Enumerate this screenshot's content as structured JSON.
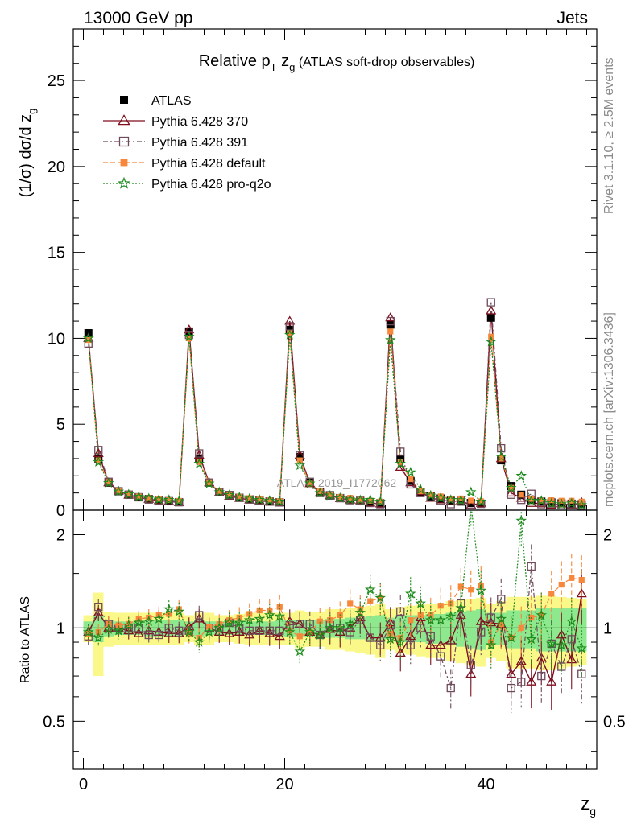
{
  "header": {
    "left": "13000 GeV pp",
    "right": "Jets"
  },
  "side_text": {
    "events": "Rivet 3.1.10, ≥ 2.5M events",
    "url": "mcplots.cern.ch [arXiv:1306.3436]"
  },
  "watermark": "ATLAS_2019_I1772062",
  "chart_data": [
    {
      "type": "scatter",
      "title": "Relative p_T z_g (ATLAS soft-drop observables)",
      "title_parts": {
        "main": "Relative p",
        "sub1": "T",
        "mid": " z",
        "sub2": "g",
        "tail": " (ATLAS soft-drop observables)"
      },
      "ylabel": "(1/σ) dσ/d z_g",
      "ylabel_parts": {
        "main": "(1/σ) dσ/d z",
        "sub": "g"
      },
      "xlabel": "z_g",
      "xlabel_parts": {
        "main": "z",
        "sub": "g"
      },
      "xlim": [
        -1,
        51
      ],
      "ylim": [
        0,
        28
      ],
      "x_ticks": [
        0,
        20,
        40
      ],
      "y_ticks": [
        0,
        5,
        10,
        15,
        20,
        25
      ],
      "legend_placement": "top-left",
      "x": [
        0.5,
        1.5,
        2.5,
        3.5,
        4.5,
        5.5,
        6.5,
        7.5,
        8.5,
        9.5,
        10.5,
        11.5,
        12.5,
        13.5,
        14.5,
        15.5,
        16.5,
        17.5,
        18.5,
        19.5,
        20.5,
        21.5,
        22.5,
        23.5,
        24.5,
        25.5,
        26.5,
        27.5,
        28.5,
        29.5,
        30.5,
        31.5,
        32.5,
        33.5,
        34.5,
        35.5,
        36.5,
        37.5,
        38.5,
        39.5,
        40.5,
        41.5,
        42.5,
        43.5,
        44.5,
        45.5,
        46.5,
        47.5,
        48.5,
        49.5
      ],
      "series": [
        {
          "name": "ATLAS",
          "color": "#000000",
          "marker": "filled-square",
          "values": [
            10.3,
            3.0,
            1.6,
            1.1,
            0.9,
            0.75,
            0.65,
            0.58,
            0.52,
            0.47,
            10.4,
            3.0,
            1.6,
            1.05,
            0.85,
            0.72,
            0.63,
            0.56,
            0.5,
            0.46,
            10.5,
            3.1,
            1.6,
            1.05,
            0.85,
            0.7,
            0.6,
            0.52,
            0.45,
            0.4,
            10.8,
            3.0,
            1.7,
            1.0,
            0.8,
            0.68,
            0.55,
            0.5,
            0.42,
            0.38,
            11.2,
            2.9,
            1.4,
            0.9,
            0.6,
            0.5,
            0.45,
            0.4,
            0.38,
            0.35
          ]
        },
        {
          "name": "Pythia 6.428 370",
          "color": "#7f0f1f",
          "marker": "open-triangle",
          "values": [
            10.0,
            3.3,
            1.6,
            1.1,
            0.88,
            0.72,
            0.64,
            0.56,
            0.5,
            0.45,
            10.5,
            3.2,
            1.6,
            1.02,
            0.82,
            0.7,
            0.6,
            0.55,
            0.48,
            0.43,
            11.0,
            3.2,
            1.55,
            1.0,
            0.84,
            0.68,
            0.6,
            0.56,
            0.42,
            0.37,
            11.2,
            2.5,
            1.6,
            1.08,
            0.7,
            0.6,
            0.5,
            0.55,
            0.3,
            0.4,
            11.6,
            3.0,
            1.0,
            0.7,
            0.4,
            0.4,
            0.3,
            0.38,
            0.3,
            0.45
          ]
        },
        {
          "name": "Pythia 6.428 391",
          "color": "#6e4a5a",
          "marker": "open-square",
          "values": [
            9.7,
            3.5,
            1.65,
            1.1,
            0.9,
            0.75,
            0.62,
            0.55,
            0.52,
            0.46,
            10.2,
            3.3,
            1.6,
            1.05,
            0.88,
            0.72,
            0.62,
            0.55,
            0.5,
            0.45,
            10.7,
            3.2,
            1.65,
            1.0,
            0.87,
            0.7,
            0.58,
            0.55,
            0.42,
            0.35,
            11.0,
            3.4,
            1.5,
            1.0,
            0.75,
            0.55,
            0.35,
            0.6,
            0.32,
            0.37,
            12.1,
            3.6,
            0.9,
            0.6,
            0.95,
            0.35,
            0.4,
            0.3,
            0.35,
            0.25
          ]
        },
        {
          "name": "Pythia 6.428 default",
          "color": "#f7873a",
          "marker": "filled-square",
          "values": [
            9.9,
            2.9,
            1.65,
            1.12,
            0.93,
            0.8,
            0.7,
            0.64,
            0.58,
            0.54,
            10.0,
            2.8,
            1.62,
            1.08,
            0.9,
            0.78,
            0.7,
            0.64,
            0.57,
            0.53,
            10.3,
            2.9,
            1.55,
            1.1,
            0.9,
            0.77,
            0.72,
            0.6,
            0.55,
            0.5,
            10.4,
            2.8,
            1.8,
            1.1,
            0.88,
            0.8,
            0.66,
            0.68,
            0.56,
            0.52,
            10.1,
            3.0,
            1.3,
            0.9,
            0.65,
            0.55,
            0.58,
            0.55,
            0.55,
            0.5
          ]
        },
        {
          "name": "Pythia 6.428 pro-q2o",
          "color": "#1b8a1b",
          "marker": "open-star",
          "values": [
            10.0,
            2.8,
            1.58,
            1.08,
            0.92,
            0.78,
            0.68,
            0.62,
            0.6,
            0.53,
            10.1,
            2.7,
            1.55,
            1.05,
            0.88,
            0.75,
            0.67,
            0.6,
            0.55,
            0.5,
            10.2,
            2.6,
            1.55,
            1.0,
            0.85,
            0.7,
            0.62,
            0.58,
            0.6,
            0.5,
            9.9,
            2.7,
            2.2,
            1.2,
            0.85,
            0.72,
            0.6,
            0.58,
            1.05,
            0.5,
            9.8,
            3.1,
            1.3,
            2.0,
            0.55,
            0.55,
            0.4,
            0.35,
            0.4,
            0.3
          ]
        }
      ]
    },
    {
      "type": "scatter",
      "ylabel": "Ratio to ATLAS",
      "ylog": true,
      "ylim": [
        0.35,
        2.4
      ],
      "y_ticks": [
        0.5,
        1,
        2
      ],
      "y_tick_labels": [
        "0.5",
        "1",
        "2"
      ],
      "x_ticks": [
        0,
        20,
        40
      ],
      "x": [
        0.5,
        1.5,
        2.5,
        3.5,
        4.5,
        5.5,
        6.5,
        7.5,
        8.5,
        9.5,
        10.5,
        11.5,
        12.5,
        13.5,
        14.5,
        15.5,
        16.5,
        17.5,
        18.5,
        19.5,
        20.5,
        21.5,
        22.5,
        23.5,
        24.5,
        25.5,
        26.5,
        27.5,
        28.5,
        29.5,
        30.5,
        31.5,
        32.5,
        33.5,
        34.5,
        35.5,
        36.5,
        37.5,
        38.5,
        39.5,
        40.5,
        41.5,
        42.5,
        43.5,
        44.5,
        45.5,
        46.5,
        47.5,
        48.5,
        49.5
      ],
      "band_inner_rel": [
        0.05,
        0.1,
        0.06,
        0.05,
        0.05,
        0.05,
        0.06,
        0.06,
        0.06,
        0.06,
        0.05,
        0.06,
        0.05,
        0.05,
        0.05,
        0.05,
        0.05,
        0.05,
        0.05,
        0.06,
        0.06,
        0.06,
        0.06,
        0.06,
        0.07,
        0.07,
        0.08,
        0.08,
        0.09,
        0.1,
        0.08,
        0.1,
        0.1,
        0.1,
        0.11,
        0.11,
        0.12,
        0.13,
        0.14,
        0.15,
        0.12,
        0.12,
        0.14,
        0.14,
        0.14,
        0.16,
        0.16,
        0.16,
        0.16,
        0.16
      ],
      "band_outer_rel": [
        0.1,
        0.3,
        0.13,
        0.12,
        0.12,
        0.12,
        0.12,
        0.12,
        0.12,
        0.12,
        0.1,
        0.12,
        0.12,
        0.1,
        0.1,
        0.11,
        0.12,
        0.12,
        0.12,
        0.12,
        0.12,
        0.14,
        0.13,
        0.13,
        0.15,
        0.15,
        0.16,
        0.17,
        0.18,
        0.2,
        0.15,
        0.17,
        0.18,
        0.19,
        0.2,
        0.2,
        0.22,
        0.23,
        0.24,
        0.25,
        0.2,
        0.22,
        0.26,
        0.26,
        0.26,
        0.27,
        0.27,
        0.26,
        0.25,
        0.24
      ],
      "series": [
        {
          "name": "Pythia 6.428 370",
          "color": "#7f0f1f",
          "marker": "open-triangle",
          "values": [
            0.97,
            1.12,
            1.0,
            1.0,
            0.98,
            0.96,
            0.98,
            0.97,
            0.96,
            0.96,
            1.01,
            1.07,
            1.0,
            0.97,
            0.96,
            0.97,
            0.95,
            0.98,
            0.96,
            0.94,
            1.05,
            1.03,
            0.97,
            0.95,
            0.99,
            0.97,
            1.0,
            1.08,
            0.93,
            0.93,
            1.04,
            0.83,
            0.94,
            1.08,
            0.88,
            0.88,
            0.91,
            1.1,
            0.71,
            1.05,
            1.04,
            1.03,
            0.71,
            0.78,
            0.67,
            0.8,
            0.67,
            0.95,
            0.79,
            1.29
          ]
        },
        {
          "name": "Pythia 6.428 391",
          "color": "#6e4a5a",
          "marker": "open-square",
          "values": [
            0.94,
            1.17,
            1.03,
            1.0,
            1.0,
            1.0,
            0.95,
            0.95,
            1.0,
            0.98,
            0.98,
            1.1,
            1.0,
            1.0,
            1.04,
            1.0,
            0.98,
            0.98,
            0.98,
            0.98,
            1.02,
            1.03,
            1.03,
            0.95,
            1.02,
            1.0,
            0.97,
            1.06,
            0.93,
            0.88,
            1.02,
            1.13,
            0.88,
            1.0,
            0.94,
            0.81,
            0.64,
            1.2,
            0.76,
            0.97,
            1.08,
            1.24,
            0.64,
            0.67,
            1.58,
            0.7,
            0.89,
            0.75,
            0.92,
            0.71
          ]
        },
        {
          "name": "Pythia 6.428 default",
          "color": "#f7873a",
          "marker": "filled-square",
          "values": [
            0.96,
            0.97,
            1.03,
            1.02,
            1.03,
            1.07,
            1.08,
            1.1,
            1.11,
            1.15,
            0.96,
            0.93,
            1.01,
            1.03,
            1.06,
            1.08,
            1.11,
            1.14,
            1.14,
            1.17,
            0.98,
            0.94,
            0.97,
            1.05,
            1.06,
            1.1,
            1.2,
            1.15,
            1.22,
            1.25,
            0.96,
            0.93,
            1.06,
            1.1,
            1.1,
            1.18,
            1.2,
            1.36,
            1.33,
            1.37,
            0.9,
            1.03,
            0.93,
            1.0,
            1.08,
            1.1,
            1.29,
            1.38,
            1.45,
            1.43
          ]
        },
        {
          "name": "Pythia 6.428 pro-q2o",
          "color": "#1b8a1b",
          "marker": "open-star",
          "values": [
            0.97,
            0.93,
            0.99,
            0.98,
            1.02,
            1.04,
            1.05,
            1.07,
            1.15,
            1.13,
            0.97,
            0.9,
            0.97,
            1.0,
            1.04,
            1.04,
            1.06,
            1.07,
            1.1,
            1.09,
            0.97,
            0.84,
            0.97,
            0.95,
            1.0,
            1.0,
            1.03,
            1.12,
            1.33,
            1.25,
            0.92,
            0.9,
            1.29,
            1.2,
            1.06,
            1.06,
            1.09,
            1.16,
            2.5,
            1.32,
            0.88,
            1.07,
            0.93,
            2.22,
            0.92,
            1.1,
            0.89,
            0.88,
            1.05,
            0.86
          ]
        }
      ]
    }
  ]
}
